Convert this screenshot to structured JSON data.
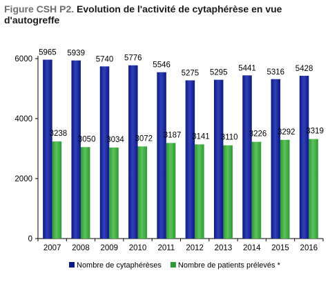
{
  "title": {
    "prefix": "Figure CSH P2.",
    "main": "Evolution de l'activité de cytaphérèse en vue d'autogreffe"
  },
  "colors": {
    "series1": "#0a1a80",
    "series1_light": "#3240b8",
    "series2": "#2e9a35",
    "series2_light": "#5cc25c"
  },
  "chart_data": {
    "type": "bar",
    "categories": [
      "2007",
      "2008",
      "2009",
      "2010",
      "2011",
      "2012",
      "2013",
      "2014",
      "2015",
      "2016"
    ],
    "series": [
      {
        "name": "Nombre de cytaphérèses",
        "values": [
          5965,
          5939,
          5740,
          5776,
          5546,
          5275,
          5295,
          5441,
          5316,
          5428
        ]
      },
      {
        "name": "Nombre de patients prélevés *",
        "values": [
          3238,
          3050,
          3034,
          3072,
          3187,
          3141,
          3110,
          3226,
          3292,
          3319
        ]
      }
    ],
    "ylim": [
      0,
      6000
    ],
    "yticks": [
      0,
      2000,
      4000,
      6000
    ],
    "grid": false,
    "legend": "bottom"
  }
}
